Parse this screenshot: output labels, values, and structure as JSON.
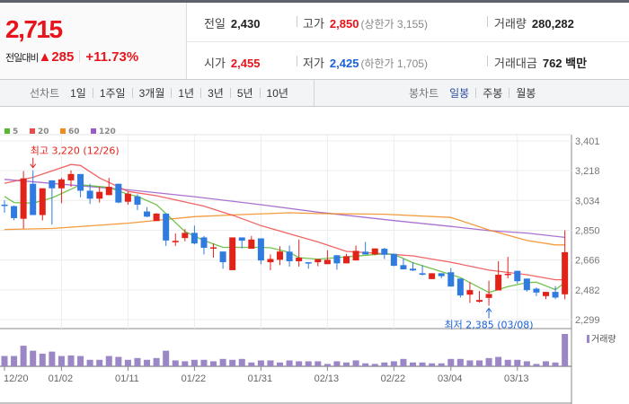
{
  "quote": {
    "price": "2,715",
    "change_label": "전일대비",
    "change_arrow": "▲",
    "change": "285",
    "change_pct": "+11.73%",
    "up_color": "#e8141b",
    "down_color": "#1a62d8"
  },
  "info": {
    "prev_close": {
      "label": "전일",
      "value": "2,430"
    },
    "high": {
      "label": "고가",
      "value": "2,850",
      "sub": "(상한가 3,155)"
    },
    "volume": {
      "label": "거래량",
      "value": "280,282"
    },
    "open": {
      "label": "시가",
      "value": "2,455"
    },
    "low": {
      "label": "저가",
      "value": "2,425",
      "sub": "(하한가 1,705)"
    },
    "amount": {
      "label": "거래대금",
      "value": "762 백만"
    }
  },
  "line_chart_tabs": {
    "title": "선차트",
    "items": [
      "1일",
      "1주일",
      "3개월",
      "1년",
      "3년",
      "5년",
      "10년"
    ]
  },
  "candle_chart_tabs": {
    "title": "봉차트",
    "items": [
      "일봉",
      "주봉",
      "월봉"
    ],
    "selected": "일봉"
  },
  "chart_data": {
    "type": "candlestick",
    "legend": [
      {
        "name": "5",
        "color": "#5ab82e"
      },
      {
        "name": "20",
        "color": "#ee4a4a"
      },
      {
        "name": "60",
        "color": "#f28a1c"
      },
      {
        "name": "120",
        "color": "#9b59c9"
      }
    ],
    "y_ticks": [
      "3,401",
      "3,218",
      "3,034",
      "2,850",
      "2,666",
      "2,482",
      "2,299"
    ],
    "ylim": [
      2299,
      3401
    ],
    "x_ticks": [
      {
        "label": "12/20",
        "candle": 0
      },
      {
        "label": "01/02",
        "candle": 6
      },
      {
        "label": "01/11",
        "candle": 13
      },
      {
        "label": "01/22",
        "candle": 20
      },
      {
        "label": "01/31",
        "candle": 27
      },
      {
        "label": "02/13",
        "candle": 34
      },
      {
        "label": "02/22",
        "candle": 41
      },
      {
        "label": "03/04",
        "candle": 47
      },
      {
        "label": "03/13",
        "candle": 54
      }
    ],
    "candles_ohlc": [
      [
        3008,
        3035,
        2958,
        3002
      ],
      [
        2999,
        3002,
        2912,
        2925
      ],
      [
        2921,
        3215,
        2861,
        3170
      ],
      [
        3137,
        3220,
        2944,
        2944
      ],
      [
        2944,
        3109,
        2911,
        3109
      ],
      [
        3158,
        3158,
        2885,
        3109
      ],
      [
        3109,
        3173,
        3017,
        3164
      ],
      [
        3158,
        3219,
        3118,
        3197
      ],
      [
        3197,
        3197,
        3054,
        3094
      ],
      [
        3094,
        3137,
        3012,
        3045
      ],
      [
        3045,
        3118,
        3021,
        3087
      ],
      [
        3067,
        3173,
        3067,
        3118
      ],
      [
        3137,
        3137,
        3017,
        3021
      ],
      [
        3026,
        3087,
        3008,
        3076
      ],
      [
        3059,
        3072,
        2975,
        3008
      ],
      [
        2966,
        2993,
        2931,
        2934
      ],
      [
        2907,
        2956,
        2907,
        2953
      ],
      [
        2953,
        2953,
        2754,
        2787
      ],
      [
        2776,
        2830,
        2754,
        2785
      ],
      [
        2802,
        2857,
        2782,
        2834
      ],
      [
        2834,
        2879,
        2763,
        2769
      ],
      [
        2806,
        2815,
        2701,
        2742
      ],
      [
        2742,
        2769,
        2681,
        2745
      ],
      [
        2719,
        2719,
        2613,
        2653
      ],
      [
        2604,
        2806,
        2604,
        2806
      ],
      [
        2806,
        2806,
        2738,
        2786
      ],
      [
        2736,
        2815,
        2736,
        2793
      ],
      [
        2800,
        2800,
        2640,
        2664
      ],
      [
        2653,
        2701,
        2604,
        2673
      ],
      [
        2668,
        2751,
        2635,
        2719
      ],
      [
        2718,
        2756,
        2626,
        2659
      ],
      [
        2659,
        2793,
        2626,
        2681
      ],
      [
        2653,
        2653,
        2613,
        2646
      ],
      [
        2653,
        2672,
        2628,
        2672
      ],
      [
        2641,
        2727,
        2641,
        2668
      ],
      [
        2696,
        2696,
        2607,
        2646
      ],
      [
        2646,
        2705,
        2646,
        2690
      ],
      [
        2664,
        2756,
        2664,
        2723
      ],
      [
        2718,
        2778,
        2701,
        2701
      ],
      [
        2701,
        2738,
        2696,
        2738
      ],
      [
        2736,
        2742,
        2673,
        2699
      ],
      [
        2705,
        2705,
        2628,
        2631
      ],
      [
        2635,
        2677,
        2609,
        2609
      ],
      [
        2613,
        2653,
        2598,
        2602
      ],
      [
        2585,
        2635,
        2571,
        2576
      ],
      [
        2549,
        2585,
        2549,
        2585
      ],
      [
        2585,
        2585,
        2554,
        2567
      ],
      [
        2591,
        2617,
        2503,
        2503
      ],
      [
        2552,
        2552,
        2435,
        2448
      ],
      [
        2453,
        2530,
        2402,
        2481
      ],
      [
        2409,
        2475,
        2405,
        2420
      ],
      [
        2433,
        2539,
        2385,
        2457
      ],
      [
        2479,
        2659,
        2479,
        2576
      ],
      [
        2576,
        2686,
        2554,
        2582
      ],
      [
        2600,
        2600,
        2521,
        2536
      ],
      [
        2552,
        2552,
        2472,
        2481
      ],
      [
        2490,
        2497,
        2444,
        2466
      ],
      [
        2444,
        2470,
        2425,
        2470
      ],
      [
        2470,
        2506,
        2425,
        2435
      ],
      [
        2455,
        2850,
        2425,
        2715
      ]
    ],
    "volume": [
      89200,
      89200,
      178400,
      135000,
      109600,
      127400,
      89200,
      94300,
      89200,
      56100,
      56100,
      89200,
      81500,
      56100,
      71300,
      56100,
      71300,
      135000,
      51000,
      43300,
      56100,
      56100,
      43300,
      63700,
      56100,
      63700,
      33100,
      51000,
      51000,
      33100,
      51000,
      43300,
      43300,
      43300,
      20400,
      43300,
      33100,
      51000,
      25500,
      20400,
      33100,
      43300,
      63700,
      33100,
      33100,
      25500,
      25500,
      63700,
      63700,
      51000,
      51000,
      71300,
      81500,
      56100,
      56100,
      43300,
      20400,
      43300,
      33100,
      280282
    ],
    "volume_label": "거래량",
    "volume_color": "#9b86c6",
    "moving_averages": {
      "5": [
        [
          0,
          3059
        ],
        [
          1,
          3021
        ],
        [
          3,
          3017
        ],
        [
          5,
          3050
        ],
        [
          7,
          3103
        ],
        [
          8,
          3131
        ],
        [
          11,
          3114
        ],
        [
          13,
          3072
        ],
        [
          14,
          3059
        ],
        [
          16,
          3008
        ],
        [
          17,
          2953
        ],
        [
          19,
          2842
        ],
        [
          21,
          2787
        ],
        [
          23,
          2745
        ],
        [
          27,
          2745
        ],
        [
          28,
          2742
        ],
        [
          30,
          2714
        ],
        [
          31,
          2681
        ],
        [
          33,
          2672
        ],
        [
          40,
          2705
        ],
        [
          41,
          2701
        ],
        [
          43,
          2650
        ],
        [
          46,
          2595
        ],
        [
          48,
          2558
        ],
        [
          51,
          2466
        ],
        [
          53,
          2503
        ],
        [
          55,
          2527
        ],
        [
          56,
          2530
        ],
        [
          58,
          2484
        ],
        [
          59,
          2527
        ]
      ],
      "20": [
        [
          0,
          3140
        ],
        [
          3,
          3177
        ],
        [
          7,
          3256
        ],
        [
          8,
          3250
        ],
        [
          10,
          3173
        ],
        [
          13,
          3090
        ],
        [
          16,
          3063
        ],
        [
          21,
          2999
        ],
        [
          24,
          2943
        ],
        [
          27,
          2879
        ],
        [
          33,
          2778
        ],
        [
          36,
          2720
        ],
        [
          40,
          2705
        ],
        [
          43,
          2692
        ],
        [
          47,
          2653
        ],
        [
          51,
          2604
        ],
        [
          55,
          2576
        ],
        [
          58,
          2545
        ],
        [
          59,
          2545
        ]
      ],
      "60": [
        [
          0,
          2855
        ],
        [
          5,
          2861
        ],
        [
          13,
          2894
        ],
        [
          20,
          2934
        ],
        [
          25,
          2947
        ],
        [
          30,
          2958
        ],
        [
          33,
          2953
        ],
        [
          40,
          2949
        ],
        [
          47,
          2929
        ],
        [
          51,
          2852
        ],
        [
          55,
          2787
        ],
        [
          58,
          2760
        ],
        [
          59,
          2760
        ]
      ],
      "120": [
        [
          0,
          3164
        ],
        [
          13,
          3100
        ],
        [
          20,
          3057
        ],
        [
          27,
          3008
        ],
        [
          33,
          2962
        ],
        [
          41,
          2910
        ],
        [
          47,
          2874
        ],
        [
          51,
          2848
        ],
        [
          55,
          2833
        ],
        [
          59,
          2806
        ]
      ]
    },
    "annotations": {
      "high": {
        "text": "최고 3,220 (12/26)",
        "candle": 3,
        "value": 3220
      },
      "low": {
        "text": "최저 2,385 (03/08)",
        "candle": 51,
        "value": 2385
      }
    }
  }
}
